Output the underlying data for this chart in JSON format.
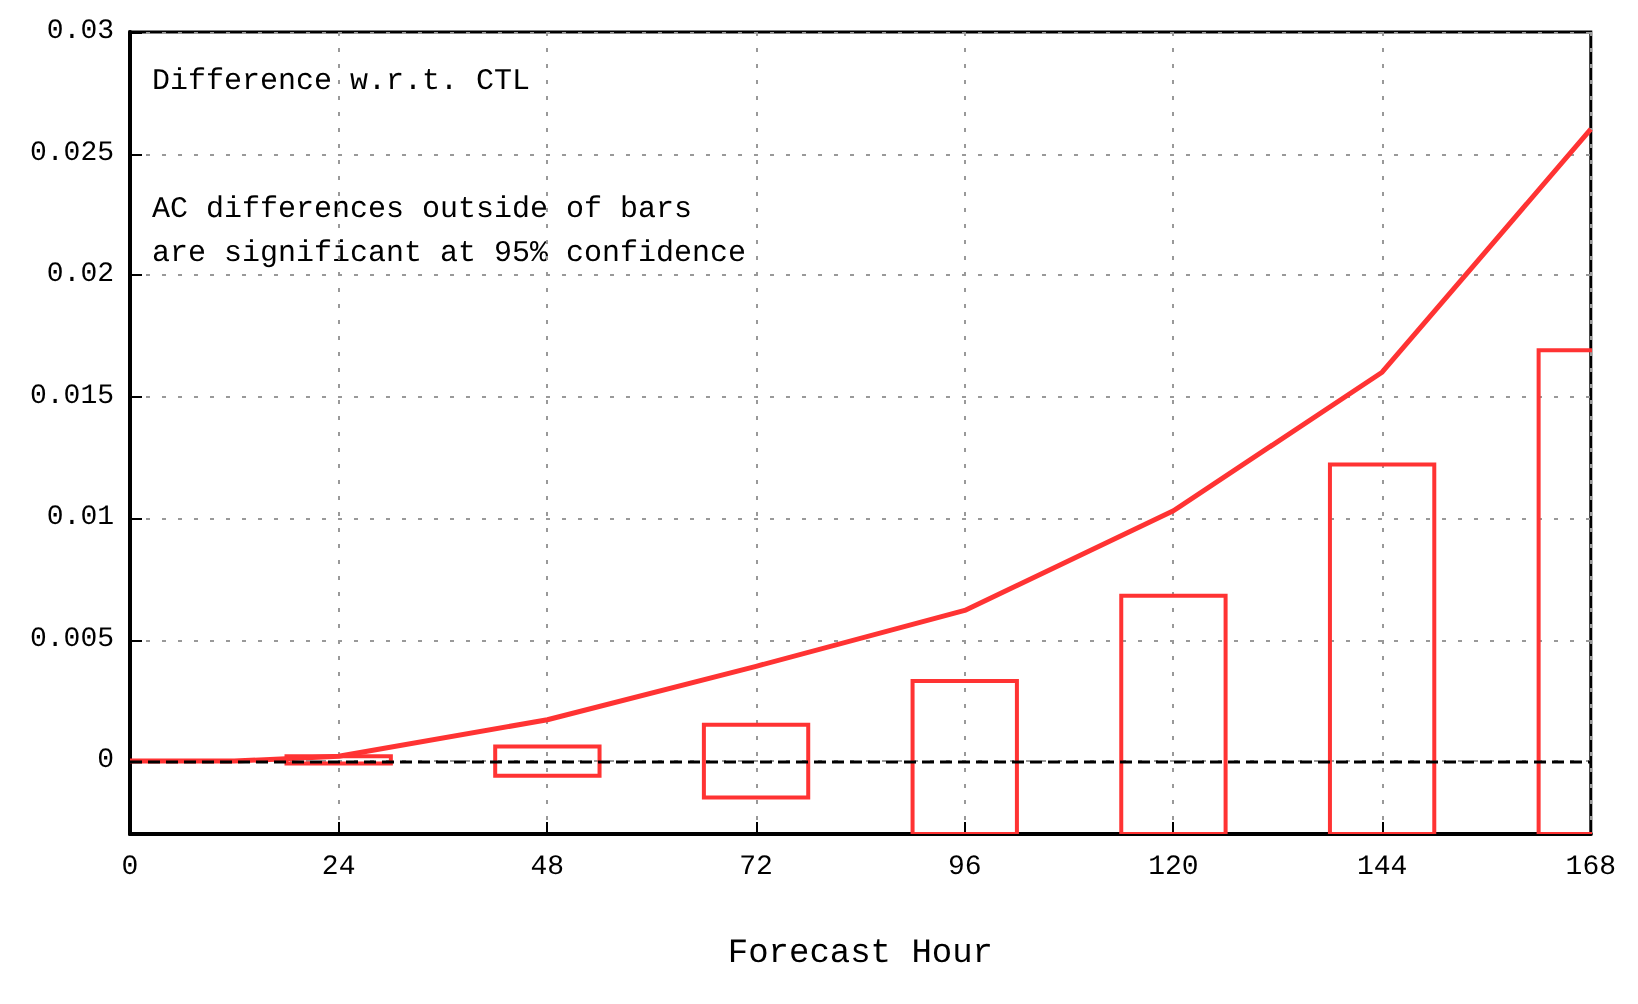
{
  "chart_data": {
    "type": "line",
    "xlabel": "Forecast Hour",
    "annotations": [
      "Difference w.r.t. CTL",
      "AC differences outside of bars\nare significant at 95% confidence"
    ],
    "series": [
      {
        "type": "bar",
        "color": "#ff3333",
        "x": [
          24,
          48,
          72,
          96,
          120,
          144,
          168
        ],
        "base": [
          -0.0001,
          -0.0006,
          -0.0015,
          -0.003,
          -0.003,
          -0.003,
          -0.003
        ],
        "values": [
          0.0003,
          0.0012,
          0.003,
          0.0063,
          0.0098,
          0.0152,
          0.0199
        ]
      },
      {
        "color": "#ff3333",
        "x": [
          0,
          12,
          24,
          48,
          72,
          96,
          120,
          144,
          168
        ],
        "values": [
          0,
          0,
          0.0002,
          0.0017,
          0.0039,
          0.0062,
          0.0103,
          0.016,
          0.026
        ]
      }
    ],
    "xlim": [
      0,
      168
    ],
    "xticks": [
      0,
      24,
      48,
      72,
      96,
      120,
      144,
      168
    ],
    "ylim": [
      -0.003,
      0.03
    ],
    "yticks": [
      0,
      0.005,
      0.01,
      0.015,
      0.02,
      0.025,
      0.03
    ],
    "ref_lines": [
      {
        "axis": "y",
        "value": 0,
        "color": "#000000",
        "line_style": "dashed"
      }
    ],
    "grid": true,
    "marker": "none",
    "line_style": "solid"
  }
}
